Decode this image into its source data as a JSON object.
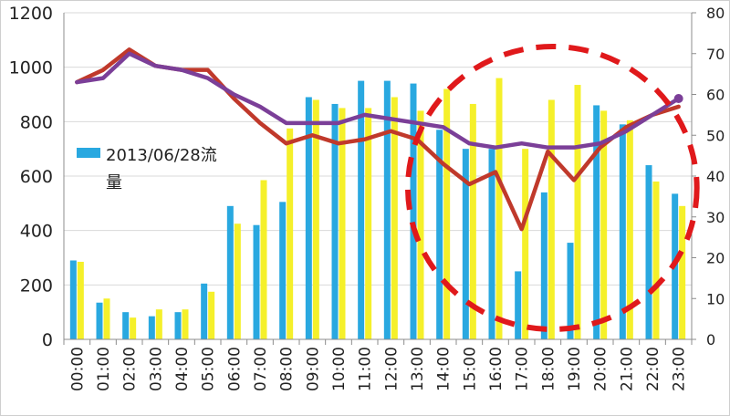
{
  "chart_data": {
    "type": "bar",
    "categories": [
      "00:00",
      "01:00",
      "02:00",
      "03:00",
      "04:00",
      "05:00",
      "06:00",
      "07:00",
      "08:00",
      "09:00",
      "10:00",
      "11:00",
      "12:00",
      "13:00",
      "14:00",
      "15:00",
      "16:00",
      "17:00",
      "18:00",
      "19:00",
      "20:00",
      "21:00",
      "22:00",
      "23:00"
    ],
    "ylim": [
      0,
      1200
    ],
    "y_ticks": [
      "0",
      "200",
      "400",
      "600",
      "800",
      "1000",
      "1200"
    ],
    "y2lim": [
      0,
      80
    ],
    "y2_ticks": [
      "0",
      "10",
      "20",
      "30",
      "40",
      "50",
      "60",
      "70",
      "80"
    ],
    "grid": "horizontal",
    "legend": {
      "placement": "left",
      "label_line1": "2013/06/28流",
      "label_line2": "量"
    },
    "series": [
      {
        "name": "2013/06/28流量",
        "kind": "bar",
        "axis": "left",
        "color": "#29a8e0",
        "values": [
          290,
          135,
          100,
          85,
          100,
          205,
          490,
          420,
          505,
          890,
          865,
          950,
          950,
          940,
          770,
          700,
          700,
          250,
          540,
          355,
          860,
          790,
          640,
          535
        ]
      },
      {
        "kind": "bar",
        "axis": "left",
        "color": "#f5f02a",
        "values": [
          285,
          150,
          80,
          110,
          110,
          175,
          425,
          585,
          775,
          880,
          850,
          850,
          890,
          840,
          920,
          865,
          960,
          700,
          880,
          935,
          840,
          805,
          580,
          490
        ]
      },
      {
        "kind": "line",
        "axis": "right",
        "color": "#c0392b",
        "values": [
          63,
          66,
          71,
          67,
          66,
          66,
          59,
          53,
          48,
          50,
          48,
          49,
          51,
          49,
          43,
          38,
          41,
          27,
          46,
          39,
          47,
          52,
          55,
          57
        ]
      },
      {
        "kind": "line",
        "axis": "right",
        "color": "#7b3f98",
        "values": [
          63,
          64,
          70,
          67,
          66,
          64,
          60,
          57,
          53,
          53,
          53,
          55,
          54,
          53,
          52,
          48,
          47,
          48,
          47,
          47,
          48,
          51,
          55,
          59
        ]
      }
    ],
    "annotations": [
      {
        "type": "dashed-ellipse",
        "color": "#e0191b",
        "x_range": [
          "13:00",
          "23:00"
        ]
      }
    ]
  }
}
